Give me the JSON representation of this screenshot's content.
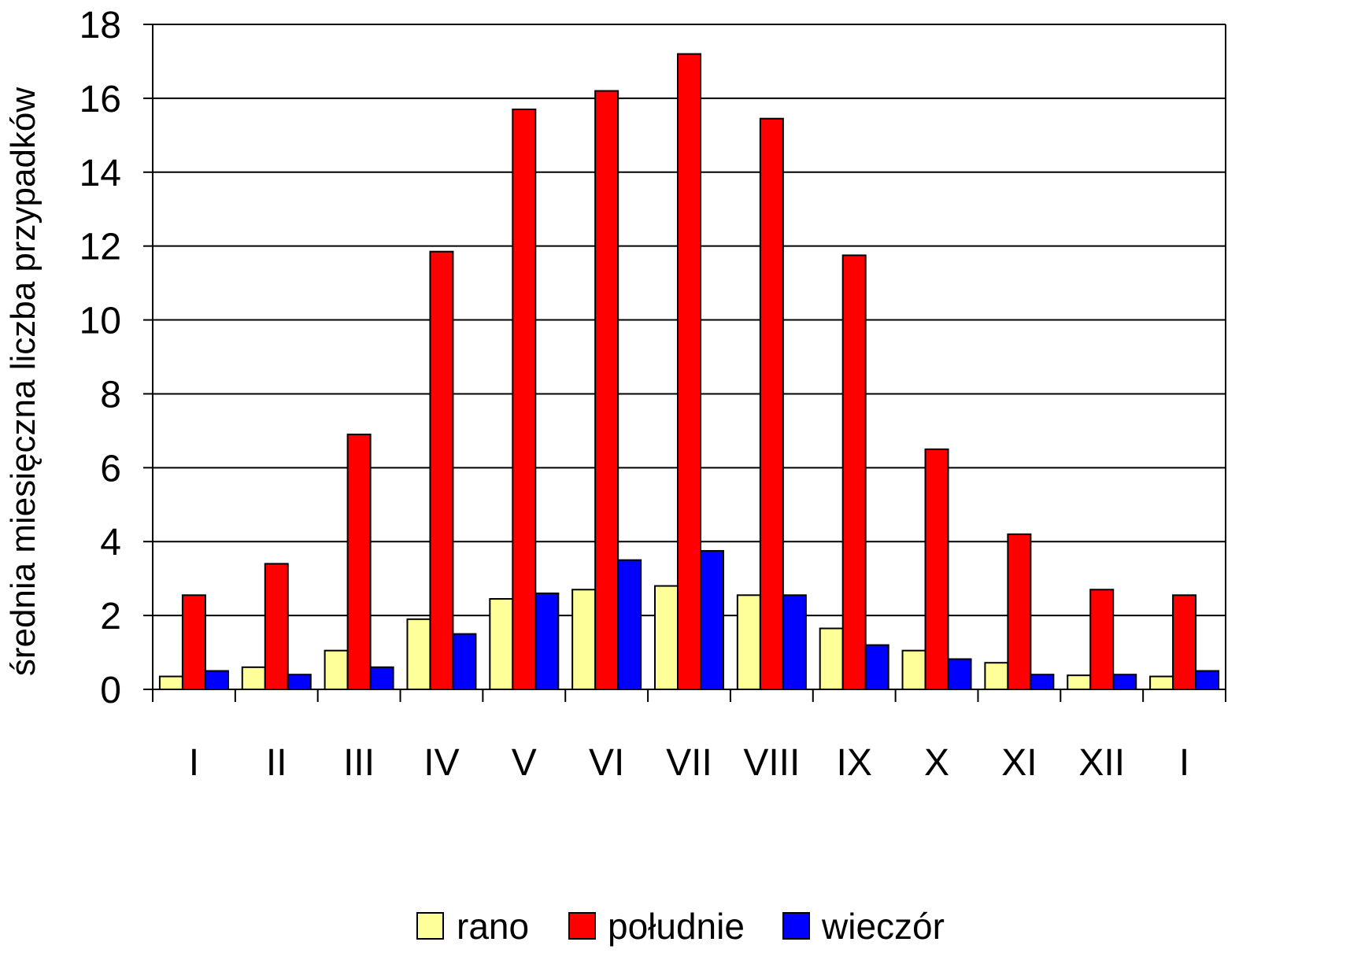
{
  "chart_data": {
    "type": "bar",
    "title": "",
    "xlabel": "",
    "ylabel": "średnia miesięczna liczba przypadków",
    "ylim": [
      0,
      18
    ],
    "yticks": [
      "0",
      "2",
      "4",
      "6",
      "8",
      "10",
      "12",
      "14",
      "16",
      "18"
    ],
    "grid": true,
    "legend_position": "bottom",
    "categories": [
      "I",
      "II",
      "III",
      "IV",
      "V",
      "VI",
      "VII",
      "VIII",
      "IX",
      "X",
      "XI",
      "XII",
      "I"
    ],
    "series": [
      {
        "name": "rano",
        "color": "#FFFF99",
        "values": [
          0.35,
          0.6,
          1.05,
          1.9,
          2.45,
          2.7,
          2.8,
          2.55,
          1.65,
          1.05,
          0.72,
          0.38,
          0.35
        ]
      },
      {
        "name": "południe",
        "color": "#FF0000",
        "values": [
          2.55,
          3.4,
          6.9,
          11.85,
          15.7,
          16.2,
          17.2,
          15.45,
          11.75,
          6.5,
          4.2,
          2.7,
          2.55
        ]
      },
      {
        "name": "wieczór",
        "color": "#0000FF",
        "values": [
          0.5,
          0.4,
          0.6,
          1.5,
          2.6,
          3.5,
          3.75,
          2.55,
          1.2,
          0.82,
          0.4,
          0.4,
          0.5
        ]
      }
    ]
  }
}
